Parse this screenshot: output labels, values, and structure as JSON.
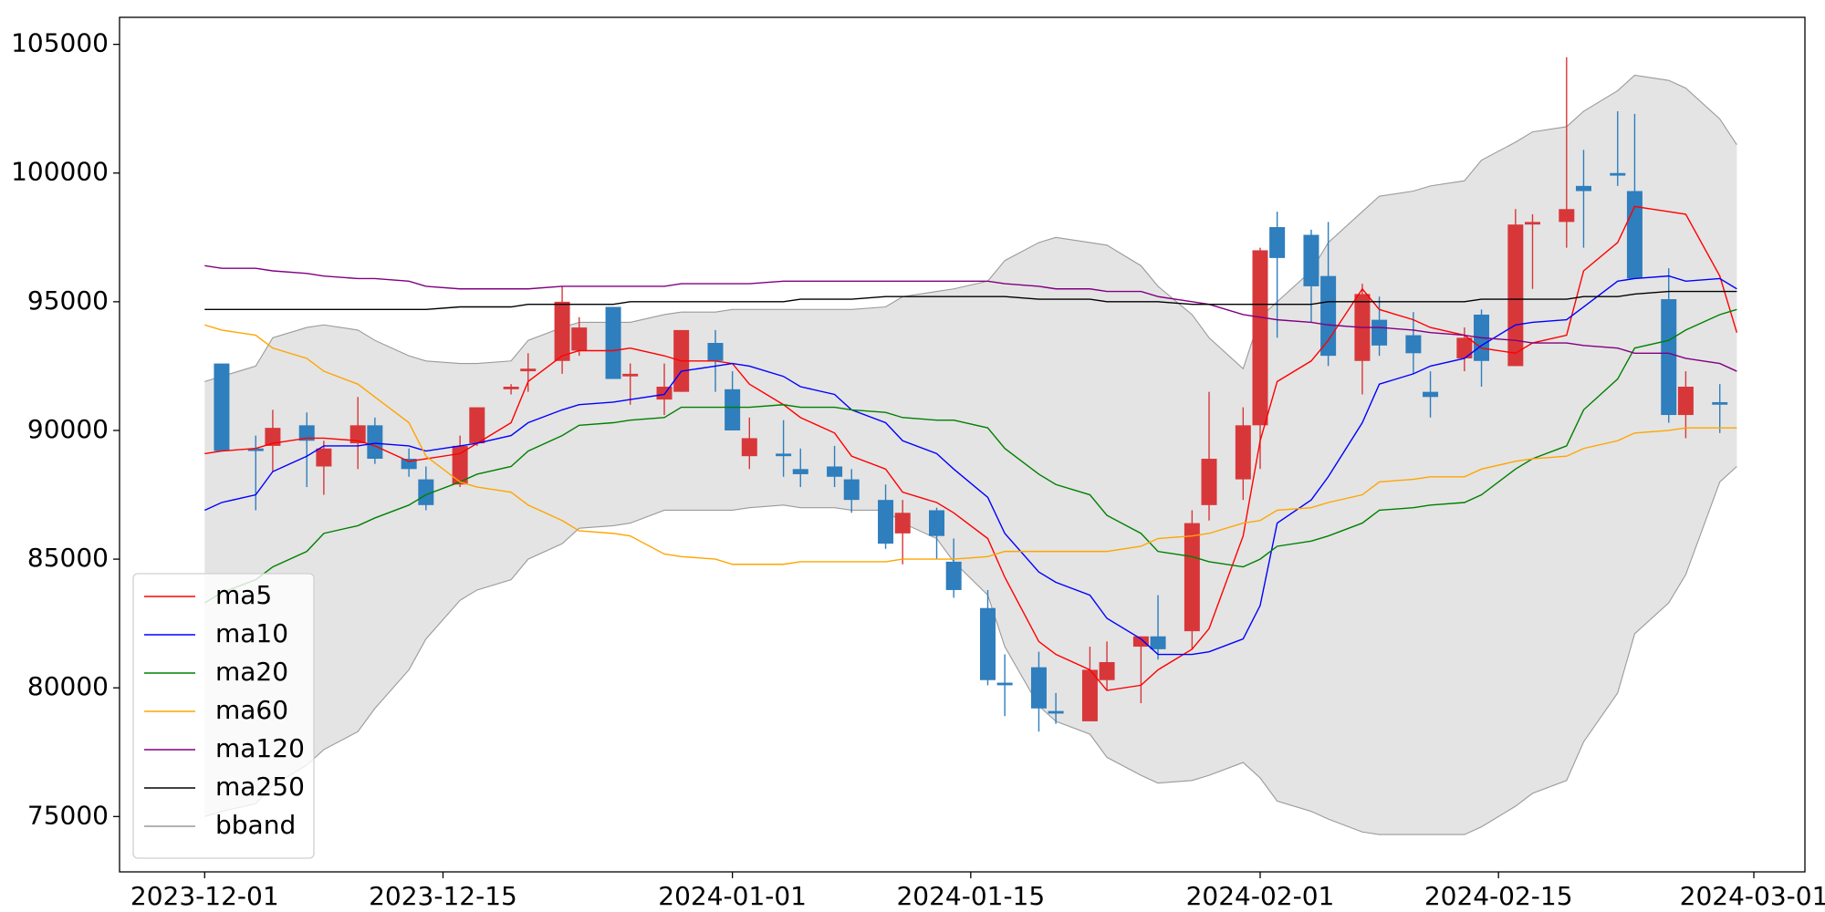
{
  "chart_data": {
    "type": "candlestick",
    "x": [
      "2023-12-01",
      "2023-12-02",
      "2023-12-04",
      "2023-12-05",
      "2023-12-07",
      "2023-12-08",
      "2023-12-10",
      "2023-12-11",
      "2023-12-13",
      "2023-12-14",
      "2023-12-16",
      "2023-12-17",
      "2023-12-19",
      "2023-12-20",
      "2023-12-22",
      "2023-12-23",
      "2023-12-25",
      "2023-12-26",
      "2023-12-28",
      "2023-12-29",
      "2023-12-31",
      "2024-01-01",
      "2024-01-02",
      "2024-01-04",
      "2024-01-05",
      "2024-01-07",
      "2024-01-08",
      "2024-01-10",
      "2024-01-11",
      "2024-01-13",
      "2024-01-14",
      "2024-01-16",
      "2024-01-17",
      "2024-01-19",
      "2024-01-20",
      "2024-01-22",
      "2024-01-23",
      "2024-01-25",
      "2024-01-26",
      "2024-01-28",
      "2024-01-29",
      "2024-01-31",
      "2024-02-01",
      "2024-02-02",
      "2024-02-04",
      "2024-02-05",
      "2024-02-07",
      "2024-02-08",
      "2024-02-10",
      "2024-02-11",
      "2024-02-13",
      "2024-02-14",
      "2024-02-16",
      "2024-02-17",
      "2024-02-19",
      "2024-02-20",
      "2024-02-22",
      "2024-02-23",
      "2024-02-25",
      "2024-02-26",
      "2024-02-28",
      "2024-02-29"
    ],
    "open": [
      null,
      92600,
      89300,
      89400,
      90200,
      88600,
      89500,
      90200,
      88900,
      88100,
      87900,
      89500,
      91600,
      92300,
      92700,
      93100,
      94800,
      92100,
      91200,
      91500,
      93400,
      91600,
      89000,
      89100,
      88500,
      88600,
      88100,
      87300,
      86000,
      86900,
      84900,
      83100,
      80200,
      80800,
      79100,
      78700,
      80300,
      81600,
      82000,
      82200,
      87100,
      88100,
      90200,
      97900,
      97600,
      96000,
      92700,
      94300,
      93700,
      91500,
      92800,
      94500,
      92500,
      98000,
      98100,
      99500,
      100000,
      99300,
      95100,
      90600,
      91100,
      null
    ],
    "high": [
      null,
      92600,
      89800,
      90800,
      90700,
      89600,
      91300,
      90500,
      89300,
      88600,
      89800,
      90900,
      91800,
      93000,
      95600,
      94400,
      94800,
      92600,
      92600,
      93900,
      93900,
      92300,
      90500,
      90400,
      89300,
      89400,
      88500,
      87900,
      87300,
      87000,
      85800,
      83800,
      81300,
      81400,
      79800,
      81600,
      81800,
      82000,
      83600,
      86900,
      91500,
      90900,
      97100,
      98500,
      97800,
      98100,
      95700,
      95200,
      94600,
      92300,
      94000,
      94700,
      98600,
      98400,
      104500,
      100900,
      102400,
      102300,
      96300,
      92300,
      91800,
      null
    ],
    "low": [
      null,
      89200,
      86900,
      88400,
      87800,
      87500,
      88500,
      88700,
      88200,
      86900,
      87800,
      89400,
      91400,
      91500,
      92200,
      92900,
      92000,
      91000,
      90600,
      91500,
      91500,
      90000,
      88500,
      88200,
      87800,
      87800,
      86800,
      85400,
      84800,
      85000,
      83500,
      80100,
      78900,
      78300,
      78600,
      78700,
      79900,
      79400,
      81100,
      81500,
      86500,
      87300,
      88500,
      93600,
      94200,
      92500,
      91400,
      92900,
      92200,
      90500,
      92300,
      91700,
      92500,
      95500,
      97100,
      97100,
      99500,
      95900,
      90300,
      89700,
      89900,
      null
    ],
    "close": [
      null,
      89200,
      89200,
      90100,
      89600,
      89300,
      90200,
      88900,
      88500,
      87100,
      89400,
      90900,
      91700,
      92400,
      95000,
      94000,
      92000,
      92200,
      91700,
      93900,
      92700,
      90000,
      89700,
      89000,
      88300,
      88200,
      87300,
      85600,
      86800,
      85900,
      83800,
      80300,
      80100,
      79200,
      79000,
      80700,
      81000,
      82000,
      81500,
      86400,
      88900,
      90200,
      97000,
      96700,
      95600,
      92900,
      95300,
      93300,
      93000,
      91300,
      93600,
      92700,
      98000,
      98100,
      98600,
      99300,
      99900,
      95900,
      90600,
      91700,
      91000,
      null
    ],
    "up_color": "#d8373a",
    "down_color": "#2f7ebd",
    "series": [
      {
        "name": "ma5",
        "color": "#ff0000",
        "values": [
          89100,
          89200,
          89300,
          89500,
          89700,
          89700,
          89600,
          89400,
          88800,
          88900,
          89100,
          89500,
          90300,
          91900,
          92900,
          93100,
          93100,
          93200,
          92900,
          92700,
          92700,
          92600,
          91800,
          91000,
          90500,
          89900,
          89000,
          88500,
          87600,
          87200,
          86800,
          85800,
          84300,
          81800,
          81300,
          80700,
          79900,
          80100,
          80700,
          81500,
          82300,
          85900,
          89600,
          91900,
          92700,
          93500,
          95500,
          94700,
          94300,
          94000,
          93700,
          93200,
          93000,
          93400,
          93700,
          96200,
          97300,
          98700,
          98500,
          98400,
          96000,
          93800
        ]
      },
      {
        "name": "ma10",
        "color": "#0000ff",
        "values": [
          86900,
          87200,
          87500,
          88400,
          89000,
          89400,
          89400,
          89500,
          89400,
          89200,
          89400,
          89500,
          89800,
          90300,
          90800,
          91000,
          91100,
          91200,
          91400,
          92300,
          92500,
          92600,
          92500,
          92100,
          91700,
          91400,
          90800,
          90300,
          89600,
          89100,
          88500,
          87400,
          86000,
          84500,
          84100,
          83600,
          82700,
          81900,
          81300,
          81300,
          81400,
          81900,
          83200,
          86400,
          87300,
          88200,
          90300,
          91800,
          92200,
          92500,
          92800,
          93300,
          94100,
          94200,
          94300,
          94800,
          95800,
          95900,
          96000,
          95800,
          95900,
          95500
        ]
      },
      {
        "name": "ma20",
        "color": "#008000",
        "values": [
          83300,
          83700,
          84200,
          84700,
          85300,
          86000,
          86300,
          86600,
          87100,
          87500,
          88000,
          88300,
          88600,
          89200,
          89800,
          90200,
          90300,
          90400,
          90500,
          90900,
          90900,
          90900,
          90900,
          91000,
          90900,
          90900,
          90800,
          90700,
          90500,
          90400,
          90400,
          90100,
          89300,
          88300,
          87900,
          87500,
          86700,
          86000,
          85300,
          85100,
          84900,
          84700,
          85000,
          85500,
          85700,
          85900,
          86400,
          86900,
          87000,
          87100,
          87200,
          87500,
          88500,
          88900,
          89400,
          90800,
          92000,
          93200,
          93500,
          93900,
          94500,
          94700
        ]
      },
      {
        "name": "ma60",
        "color": "#ffa500",
        "values": [
          94100,
          93900,
          93700,
          93200,
          92800,
          92300,
          91800,
          91300,
          90300,
          89000,
          88000,
          87800,
          87600,
          87100,
          86500,
          86100,
          86000,
          85900,
          85200,
          85100,
          85000,
          84800,
          84800,
          84800,
          84900,
          84900,
          84900,
          84900,
          85000,
          85000,
          85000,
          85100,
          85300,
          85300,
          85300,
          85300,
          85300,
          85500,
          85800,
          85900,
          86000,
          86400,
          86500,
          86900,
          87000,
          87200,
          87500,
          88000,
          88100,
          88200,
          88200,
          88500,
          88800,
          88900,
          89000,
          89300,
          89600,
          89900,
          90000,
          90100,
          90100,
          90100
        ]
      },
      {
        "name": "ma120",
        "color": "#800080",
        "values": [
          96400,
          96300,
          96300,
          96200,
          96100,
          96000,
          95900,
          95900,
          95800,
          95600,
          95500,
          95500,
          95500,
          95500,
          95600,
          95600,
          95600,
          95600,
          95600,
          95700,
          95700,
          95700,
          95700,
          95800,
          95800,
          95800,
          95800,
          95800,
          95800,
          95800,
          95800,
          95800,
          95700,
          95600,
          95500,
          95500,
          95400,
          95400,
          95200,
          95000,
          94900,
          94500,
          94400,
          94300,
          94200,
          94100,
          94000,
          94000,
          93900,
          93800,
          93700,
          93600,
          93500,
          93400,
          93400,
          93300,
          93200,
          93000,
          93000,
          92800,
          92600,
          92300
        ]
      },
      {
        "name": "ma250",
        "color": "#000000",
        "values": [
          94700,
          94700,
          94700,
          94700,
          94700,
          94700,
          94700,
          94700,
          94700,
          94700,
          94800,
          94800,
          94800,
          94900,
          94900,
          94900,
          94900,
          95000,
          95000,
          95000,
          95000,
          95000,
          95000,
          95000,
          95100,
          95100,
          95100,
          95200,
          95200,
          95200,
          95200,
          95200,
          95200,
          95100,
          95100,
          95100,
          95000,
          95000,
          95000,
          94900,
          94900,
          94900,
          94900,
          94900,
          94900,
          95000,
          95000,
          95000,
          95000,
          95000,
          95000,
          95100,
          95100,
          95100,
          95100,
          95200,
          95200,
          95300,
          95400,
          95400,
          95400,
          95400
        ]
      }
    ],
    "bband": {
      "name": "bband",
      "color": "#9a9a9a",
      "fill": "#e4e4e4",
      "upper": [
        91900,
        92100,
        92500,
        93600,
        94000,
        94100,
        93900,
        93500,
        92900,
        92700,
        92600,
        92600,
        92700,
        93500,
        94000,
        94200,
        94200,
        94200,
        94500,
        94600,
        94600,
        94700,
        94700,
        94700,
        94700,
        94700,
        94700,
        94800,
        95200,
        95400,
        95500,
        95800,
        96600,
        97300,
        97500,
        97300,
        97200,
        96400,
        95600,
        94500,
        93600,
        92400,
        94400,
        95000,
        96200,
        97300,
        98500,
        99100,
        99300,
        99500,
        99700,
        100500,
        101200,
        101600,
        101800,
        102400,
        103200,
        103800,
        103600,
        103300,
        102100,
        101100
      ],
      "lower": [
        75000,
        75200,
        75500,
        76200,
        77000,
        77600,
        78300,
        79200,
        80700,
        81900,
        83400,
        83800,
        84200,
        85000,
        85600,
        86200,
        86300,
        86400,
        86900,
        86900,
        86900,
        86900,
        87000,
        87100,
        87000,
        87000,
        86900,
        86900,
        86400,
        85800,
        84900,
        83600,
        81600,
        79300,
        78700,
        78200,
        77300,
        76600,
        76300,
        76400,
        76600,
        77100,
        76500,
        75600,
        75200,
        74900,
        74400,
        74300,
        74300,
        74300,
        74300,
        74600,
        75400,
        75900,
        76400,
        77900,
        79800,
        82100,
        83300,
        84400,
        88000,
        88600
      ]
    },
    "xlim": [
      "2023-11-26",
      "2024-03-04"
    ],
    "xticks": [
      "2023-12-01",
      "2023-12-15",
      "2024-01-01",
      "2024-01-15",
      "2024-02-01",
      "2024-02-15",
      "2024-03-01"
    ],
    "ylim": [
      72850,
      106050
    ],
    "yticks": [
      75000,
      80000,
      85000,
      90000,
      95000,
      100000,
      105000
    ],
    "legend": "lower left"
  }
}
